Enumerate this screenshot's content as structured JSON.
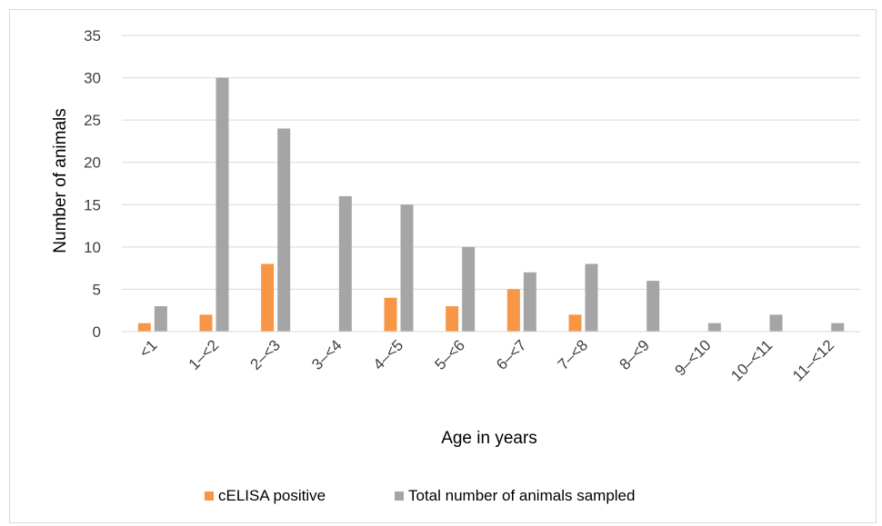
{
  "chart_data": {
    "type": "bar",
    "title": "",
    "xlabel": "Age in years",
    "ylabel": "Number of animals",
    "ylim": [
      0,
      35
    ],
    "yticks": [
      0,
      5,
      10,
      15,
      20,
      25,
      30,
      35
    ],
    "grid": true,
    "legend_position": "bottom",
    "categories": [
      "<1",
      "1‒<2",
      "2‒<3",
      "3‒<4",
      "4‒<5",
      "5‒<6",
      "6‒<7",
      "7‒<8",
      "8‒<9",
      "9‒<10",
      "10‒<11",
      "11‒<12"
    ],
    "series": [
      {
        "name": "cELISA positive",
        "color": "#f79646",
        "values": [
          1,
          2,
          8,
          0,
          4,
          3,
          5,
          2,
          0,
          0,
          0,
          0
        ]
      },
      {
        "name": "Total number of animals sampled",
        "color": "#a5a5a5",
        "values": [
          3,
          30,
          24,
          16,
          15,
          10,
          7,
          8,
          6,
          1,
          2,
          1
        ]
      }
    ]
  }
}
